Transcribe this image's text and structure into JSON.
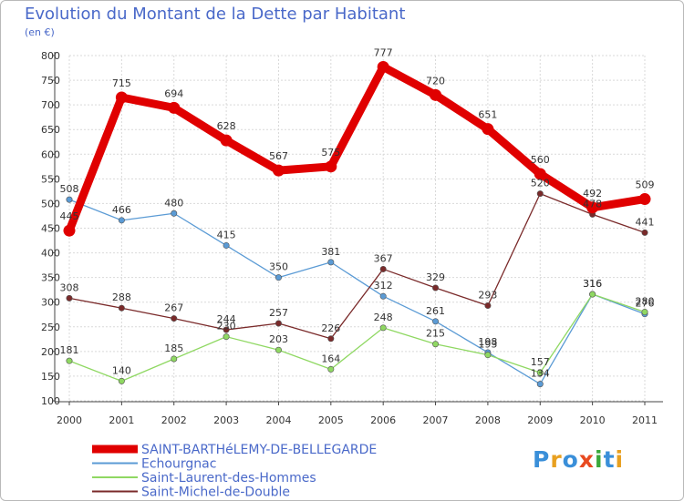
{
  "header": {
    "title": "Evolution du Montant de la Dette par Habitant",
    "unit": "(en €)"
  },
  "logo": {
    "text": "Proxiti",
    "letter_colors": [
      "#3a8fd9",
      "#e8a020",
      "#3a8fd9",
      "#e84a20",
      "#3aa83a",
      "#3a8fd9",
      "#e8a020"
    ]
  },
  "chart_data": {
    "type": "line",
    "title": "Evolution du Montant de la Dette par Habitant",
    "subtitle": "(en €)",
    "xlabel": "",
    "ylabel": "",
    "x": [
      "2000",
      "2001",
      "2002",
      "2003",
      "2004",
      "2005",
      "2006",
      "2007",
      "2008",
      "2009",
      "2010",
      "2011"
    ],
    "ylim": [
      100,
      800
    ],
    "yticks": [
      100,
      150,
      200,
      250,
      300,
      350,
      400,
      450,
      500,
      550,
      600,
      650,
      700,
      750,
      800
    ],
    "grid": true,
    "legend_position": "bottom-left",
    "series": [
      {
        "name": "SAINT-BARTHéLEMY-DE-BELLEGARDE",
        "color": "#e00000",
        "thick": true,
        "values": [
          445,
          715,
          694,
          628,
          567,
          575,
          777,
          720,
          651,
          560,
          492,
          509
        ],
        "labels": [
          "445",
          "715",
          "694",
          "628",
          "567",
          "575",
          "777",
          "720",
          "651",
          "560",
          "492",
          "509"
        ]
      },
      {
        "name": "Echourgnac",
        "color": "#5b9bd5",
        "thick": false,
        "values": [
          508,
          466,
          480,
          415,
          350,
          381,
          312,
          261,
          198,
          134,
          316,
          276
        ],
        "labels": [
          "508",
          "466",
          "480",
          "415",
          "350",
          "381",
          "312",
          "261",
          "198",
          "134",
          "316",
          "276"
        ]
      },
      {
        "name": "Saint-Laurent-des-Hommes",
        "color": "#8fd862",
        "thick": false,
        "values": [
          181,
          140,
          185,
          230,
          203,
          164,
          248,
          215,
          193,
          157,
          316,
          280
        ],
        "labels": [
          "181",
          "140",
          "185",
          "230",
          "203",
          "164",
          "248",
          "215",
          "193",
          "157",
          "316",
          "280"
        ]
      },
      {
        "name": "Saint-Michel-de-Double",
        "color": "#7a2a2a",
        "thick": false,
        "values": [
          308,
          288,
          267,
          244,
          257,
          226,
          367,
          329,
          293,
          520,
          478,
          441
        ],
        "labels": [
          "308",
          "288",
          "267",
          "244",
          "257",
          "226",
          "367",
          "329",
          "293",
          "520",
          "478",
          "441"
        ]
      }
    ]
  }
}
